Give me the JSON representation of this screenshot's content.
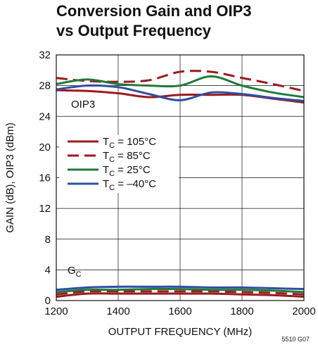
{
  "chart_data": {
    "type": "line",
    "title_line1": "Conversion Gain and OIP3",
    "title_line2": "vs Output Frequency",
    "xlabel": "OUTPUT FREQUENCY (MHz)",
    "ylabel": "GAIN (dB), OIP3 (dBm)",
    "xlim": [
      1200,
      2000
    ],
    "ylim": [
      0,
      32
    ],
    "xticks": [
      "1200",
      "1400",
      "1600",
      "1800",
      "2000"
    ],
    "yticks": [
      "0",
      "4",
      "8",
      "12",
      "16",
      "20",
      "24",
      "28",
      "32"
    ],
    "grid": true,
    "legend_position": "middle-left",
    "annotations": {
      "oip3": "OIP3",
      "gc_main": "G",
      "gc_sub": "C"
    },
    "figure_code": "5510 G07",
    "series": [
      {
        "name": "TC = 105°C",
        "label_main": "T",
        "label_sub": "C",
        "label_rest": " = 105°C",
        "color": "#9b1b1e",
        "dash": "solid",
        "group": "oip3",
        "x": [
          1200,
          1300,
          1400,
          1500,
          1600,
          1700,
          1800,
          1900,
          2000
        ],
        "values": [
          27.4,
          27.3,
          27.0,
          26.5,
          26.8,
          26.8,
          26.8,
          26.3,
          25.8
        ]
      },
      {
        "name": "TC = 85°C",
        "label_main": "T",
        "label_sub": "C",
        "label_rest": " = 85°C",
        "color": "#9b1b1e",
        "dash": "dashed",
        "group": "oip3",
        "x": [
          1200,
          1300,
          1400,
          1500,
          1600,
          1700,
          1800,
          1900,
          2000
        ],
        "values": [
          29.0,
          28.6,
          28.5,
          28.7,
          29.8,
          29.8,
          29.0,
          28.2,
          27.3
        ]
      },
      {
        "name": "TC = 25°C",
        "label_main": "T",
        "label_sub": "C",
        "label_rest": " = 25°C",
        "color": "#1f7a3a",
        "dash": "solid",
        "group": "oip3",
        "x": [
          1200,
          1300,
          1400,
          1500,
          1600,
          1700,
          1800,
          1900,
          2000
        ],
        "values": [
          28.2,
          28.8,
          28.2,
          28.0,
          28.0,
          29.2,
          28.0,
          27.1,
          26.5
        ]
      },
      {
        "name": "TC = –40°C",
        "label_main": "T",
        "label_sub": "C",
        "label_rest": " = –40°C",
        "color": "#2e4fa3",
        "dash": "solid",
        "group": "oip3",
        "x": [
          1200,
          1300,
          1400,
          1500,
          1600,
          1700,
          1800,
          1900,
          2000
        ],
        "values": [
          27.5,
          28.0,
          27.8,
          26.9,
          26.1,
          27.1,
          26.9,
          26.4,
          26.0
        ]
      },
      {
        "name": "TC = 105°C",
        "color": "#9b1b1e",
        "dash": "solid",
        "group": "gain",
        "x": [
          1200,
          1300,
          1400,
          1500,
          1600,
          1700,
          1800,
          1900,
          2000
        ],
        "values": [
          0.5,
          0.9,
          0.9,
          0.9,
          0.9,
          0.9,
          0.8,
          0.7,
          0.5
        ]
      },
      {
        "name": "TC = 85°C",
        "color": "#9b1b1e",
        "dash": "dashed",
        "group": "gain",
        "x": [
          1200,
          1300,
          1400,
          1500,
          1600,
          1700,
          1800,
          1900,
          2000
        ],
        "values": [
          0.8,
          1.2,
          1.2,
          1.2,
          1.2,
          1.2,
          1.1,
          1.0,
          0.8
        ]
      },
      {
        "name": "TC = 25°C",
        "color": "#1f7a3a",
        "dash": "solid",
        "group": "gain",
        "x": [
          1200,
          1300,
          1400,
          1500,
          1600,
          1700,
          1800,
          1900,
          2000
        ],
        "values": [
          1.1,
          1.4,
          1.4,
          1.5,
          1.5,
          1.4,
          1.4,
          1.3,
          1.1
        ]
      },
      {
        "name": "TC = –40°C",
        "color": "#2e4fa3",
        "dash": "solid",
        "group": "gain",
        "x": [
          1200,
          1300,
          1400,
          1500,
          1600,
          1700,
          1800,
          1900,
          2000
        ],
        "values": [
          1.4,
          1.7,
          1.8,
          1.8,
          1.8,
          1.7,
          1.7,
          1.6,
          1.5
        ]
      }
    ]
  }
}
